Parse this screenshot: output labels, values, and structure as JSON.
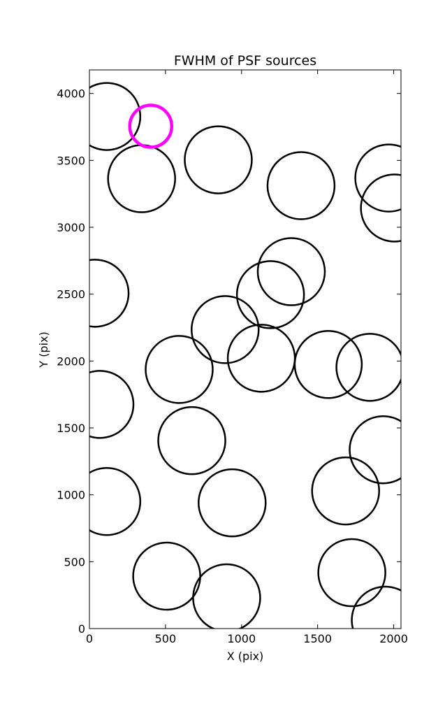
{
  "chart_data": {
    "type": "scatter",
    "title": "FWHM of PSF sources",
    "x_label": "X (pix)",
    "y_label": "Y (pix)",
    "xlim": [
      0,
      2048
    ],
    "ylim": [
      0,
      4176
    ],
    "xticks": [
      0,
      500,
      1000,
      1500,
      2000
    ],
    "yticks": [
      0,
      500,
      1000,
      1500,
      2000,
      2500,
      3000,
      3500,
      4000
    ],
    "series": [
      {
        "color": "#000000",
        "x": [
          114,
          343,
          847,
          1391,
          1968,
          2005,
          1327,
          1190,
          37,
          892,
          590,
          1130,
          1570,
          1844,
          69,
          673,
          1931,
          1684,
          114,
          938,
          508,
          1725,
          902,
          1945
        ],
        "values": [
          3828,
          3363,
          3504,
          3311,
          3368,
          3144,
          2668,
          2496,
          2507,
          2235,
          1937,
          2021,
          1974,
          1953,
          1676,
          1405,
          1337,
          1029,
          950,
          940,
          392,
          418,
          230,
          63
        ]
      },
      {
        "color": "#ff00ff",
        "x": [
          403
        ],
        "values": [
          3755
        ]
      }
    ]
  }
}
